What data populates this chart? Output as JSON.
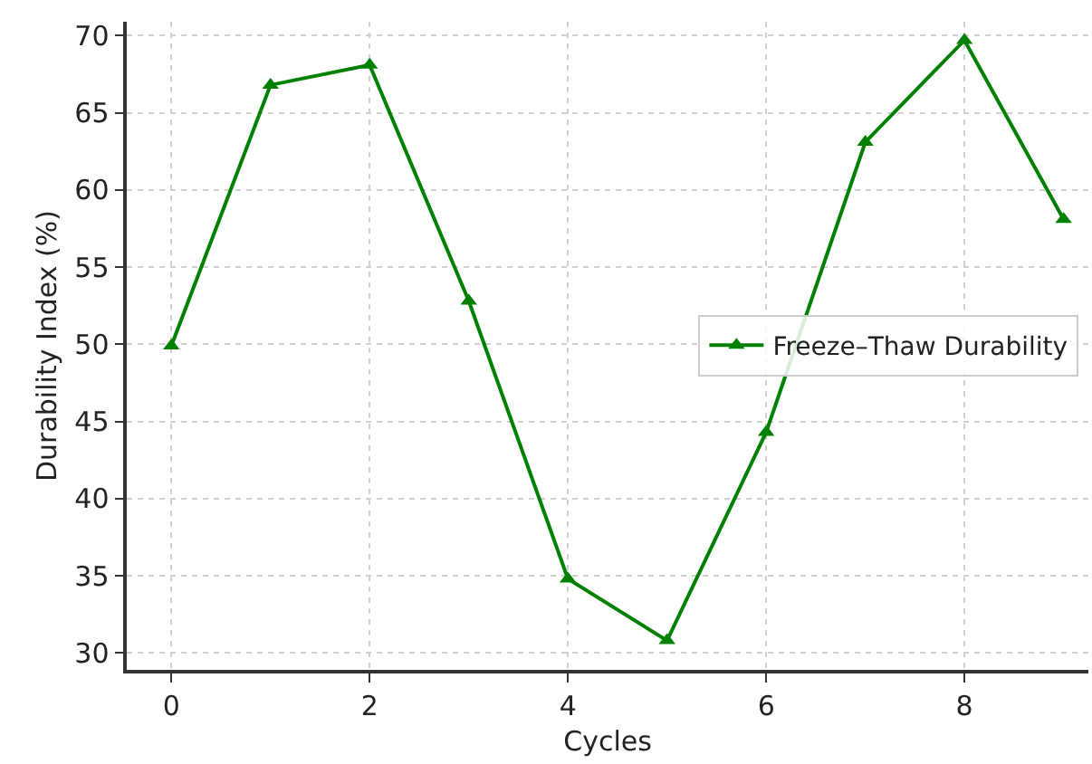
{
  "chart_data": {
    "type": "line",
    "xlabel": "Cycles",
    "ylabel": "Durability Index (%)",
    "x": [
      0,
      1,
      2,
      3,
      4,
      5,
      6,
      7,
      8,
      9
    ],
    "series": [
      {
        "name": "Freeze–Thaw Durability",
        "color": "#008000",
        "values": [
          49.9,
          66.8,
          68.1,
          52.8,
          34.8,
          30.8,
          44.3,
          63.1,
          69.7,
          58.1
        ]
      }
    ],
    "xlim": [
      -0.45,
      9.25
    ],
    "xticks": [
      0,
      2,
      4,
      6,
      8
    ],
    "ylim": [
      28.9,
      70.9
    ],
    "yticks": [
      30,
      35,
      40,
      45,
      50,
      55,
      60,
      65,
      70
    ],
    "grid": true,
    "legend": "right",
    "marker": "triangle",
    "line_style": "solid"
  }
}
